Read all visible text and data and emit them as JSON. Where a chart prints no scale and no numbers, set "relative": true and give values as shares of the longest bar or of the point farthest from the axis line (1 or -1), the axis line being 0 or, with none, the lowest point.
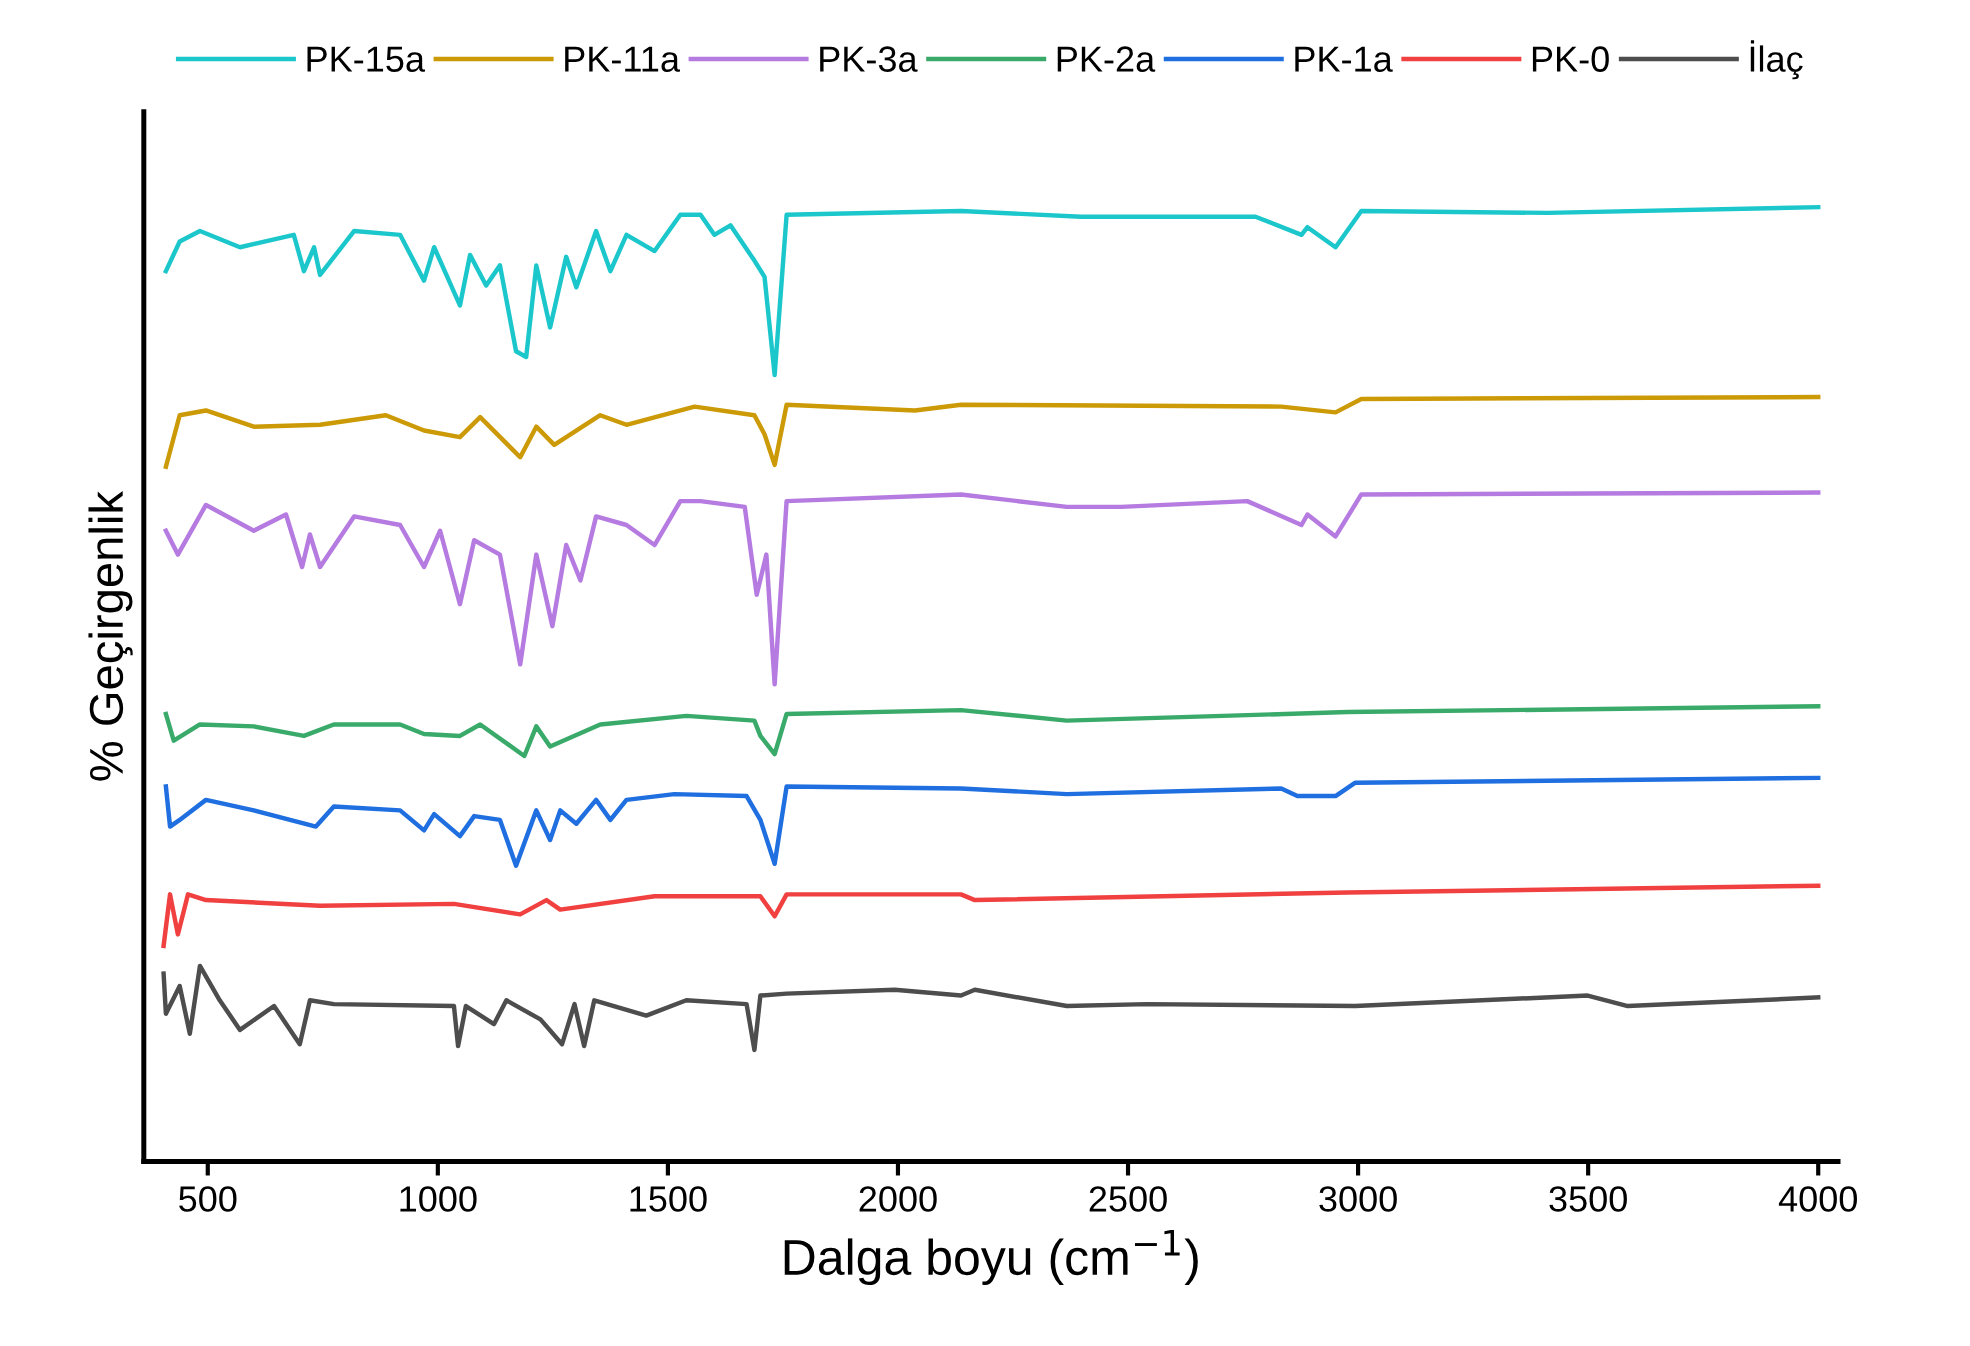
{
  "chart_data": {
    "type": "line",
    "relative": true,
    "xlabel": "Dalga boyu (cm$^{−1}$)",
    "ylabel": "% Geçirgenlik",
    "xlim": [
      361,
      4043
    ],
    "xticks": [
      500,
      1000,
      1500,
      2000,
      2500,
      3000,
      3500,
      4000
    ],
    "tick_labels": "x",
    "legend": "top",
    "marker": "none",
    "line_style": "solid",
    "grid": false,
    "series": [
      {
        "name": "PK-15a",
        "color": "#1cc7cc",
        "x": [
          409,
          439,
          483,
          570,
          687,
          709,
          731,
          744,
          818,
          918,
          970,
          992,
          1048,
          1070,
          1105,
          1135,
          1170,
          1192,
          1214,
          1244,
          1279,
          1301,
          1344,
          1375,
          1410,
          1471,
          1527,
          1571,
          1601,
          1636,
          1688,
          1710,
          1732,
          1758,
          2137,
          2398,
          2777,
          2877,
          2890,
          2951,
          3007,
          3412,
          4000
        ],
        "values": [
          0.933,
          0.964,
          0.975,
          0.958,
          0.971,
          0.933,
          0.958,
          0.929,
          0.975,
          0.971,
          0.923,
          0.958,
          0.897,
          0.95,
          0.918,
          0.939,
          0.849,
          0.843,
          0.939,
          0.874,
          0.948,
          0.916,
          0.975,
          0.933,
          0.971,
          0.954,
          0.992,
          0.992,
          0.971,
          0.981,
          0.944,
          0.927,
          0.824,
          0.992,
          0.996,
          0.99,
          0.99,
          0.971,
          0.979,
          0.958,
          0.996,
          0.994,
          1
        ]
      },
      {
        "name": "PK-11a",
        "color": "#cc9a06",
        "x": [
          409,
          439,
          496,
          600,
          744,
          887,
          970,
          1048,
          1092,
          1179,
          1214,
          1253,
          1353,
          1410,
          1558,
          1688,
          1710,
          1732,
          1758,
          2037,
          2137,
          2833,
          2951,
          3007,
          4000
        ],
        "values": [
          0.728,
          0.782,
          0.787,
          0.77,
          0.772,
          0.782,
          0.766,
          0.759,
          0.78,
          0.738,
          0.77,
          0.751,
          0.782,
          0.772,
          0.791,
          0.782,
          0.762,
          0.73,
          0.793,
          0.787,
          0.793,
          0.791,
          0.785,
          0.799,
          0.801
        ]
      },
      {
        "name": "PK-3a",
        "color": "#b57be0",
        "x": [
          409,
          435,
          496,
          600,
          670,
          705,
          722,
          744,
          818,
          918,
          970,
          1005,
          1048,
          1079,
          1135,
          1179,
          1214,
          1249,
          1279,
          1310,
          1344,
          1410,
          1471,
          1527,
          1571,
          1667,
          1693,
          1714,
          1732,
          1758,
          2137,
          2367,
          2485,
          2759,
          2877,
          2890,
          2951,
          3007,
          4000
        ],
        "values": [
          0.661,
          0.636,
          0.688,
          0.661,
          0.678,
          0.623,
          0.657,
          0.623,
          0.676,
          0.667,
          0.623,
          0.661,
          0.584,
          0.651,
          0.636,
          0.521,
          0.636,
          0.561,
          0.646,
          0.609,
          0.676,
          0.667,
          0.646,
          0.692,
          0.692,
          0.686,
          0.594,
          0.636,
          0.5,
          0.692,
          0.699,
          0.686,
          0.686,
          0.692,
          0.667,
          0.678,
          0.655,
          0.699,
          0.701
        ]
      },
      {
        "name": "PK-2a",
        "color": "#3aaa6a",
        "x": [
          409,
          426,
          483,
          600,
          709,
          774,
          918,
          970,
          1048,
          1092,
          1188,
          1214,
          1244,
          1353,
          1540,
          1688,
          1701,
          1732,
          1758,
          2137,
          2367,
          2977,
          4000
        ],
        "values": [
          0.469,
          0.441,
          0.458,
          0.456,
          0.446,
          0.458,
          0.458,
          0.448,
          0.446,
          0.458,
          0.425,
          0.456,
          0.435,
          0.458,
          0.467,
          0.462,
          0.446,
          0.427,
          0.469,
          0.473,
          0.462,
          0.471,
          0.477
        ]
      },
      {
        "name": "PK-1a",
        "color": "#1f6fe0",
        "x": [
          409,
          418,
          439,
          496,
          600,
          735,
          774,
          918,
          970,
          992,
          1048,
          1079,
          1135,
          1170,
          1214,
          1244,
          1266,
          1301,
          1344,
          1375,
          1410,
          1514,
          1671,
          1701,
          1732,
          1758,
          2137,
          2367,
          2833,
          2868,
          2951,
          2994,
          4000
        ],
        "values": [
          0.393,
          0.351,
          0.358,
          0.379,
          0.368,
          0.351,
          0.372,
          0.368,
          0.347,
          0.364,
          0.341,
          0.362,
          0.358,
          0.31,
          0.368,
          0.337,
          0.368,
          0.354,
          0.379,
          0.358,
          0.379,
          0.385,
          0.383,
          0.358,
          0.312,
          0.393,
          0.391,
          0.385,
          0.391,
          0.383,
          0.383,
          0.397,
          0.402
        ]
      },
      {
        "name": "PK-0",
        "color": "#f04040",
        "x": [
          404,
          418,
          435,
          457,
          496,
          744,
          1035,
          1179,
          1236,
          1266,
          1471,
          1701,
          1732,
          1758,
          2137,
          2167,
          2977,
          4000
        ],
        "values": [
          0.226,
          0.28,
          0.238,
          0.28,
          0.274,
          0.268,
          0.27,
          0.259,
          0.274,
          0.264,
          0.278,
          0.278,
          0.257,
          0.28,
          0.28,
          0.274,
          0.282,
          0.289
        ]
      },
      {
        "name": "İlaç",
        "color": "#4d4d4d",
        "x": [
          404,
          409,
          439,
          461,
          483,
          526,
          570,
          644,
          700,
          722,
          774,
          1035,
          1044,
          1061,
          1122,
          1149,
          1223,
          1270,
          1297,
          1318,
          1340,
          1453,
          1540,
          1671,
          1688,
          1701,
          1758,
          1993,
          2137,
          2167,
          2367,
          2541,
          2994,
          3499,
          3586,
          4000
        ],
        "values": [
          0.197,
          0.155,
          0.184,
          0.134,
          0.205,
          0.169,
          0.138,
          0.163,
          0.123,
          0.169,
          0.165,
          0.163,
          0.121,
          0.163,
          0.144,
          0.169,
          0.149,
          0.123,
          0.165,
          0.121,
          0.169,
          0.153,
          0.169,
          0.165,
          0.117,
          0.174,
          0.176,
          0.18,
          0.174,
          0.18,
          0.163,
          0.165,
          0.163,
          0.174,
          0.163,
          0.172
        ]
      }
    ]
  }
}
